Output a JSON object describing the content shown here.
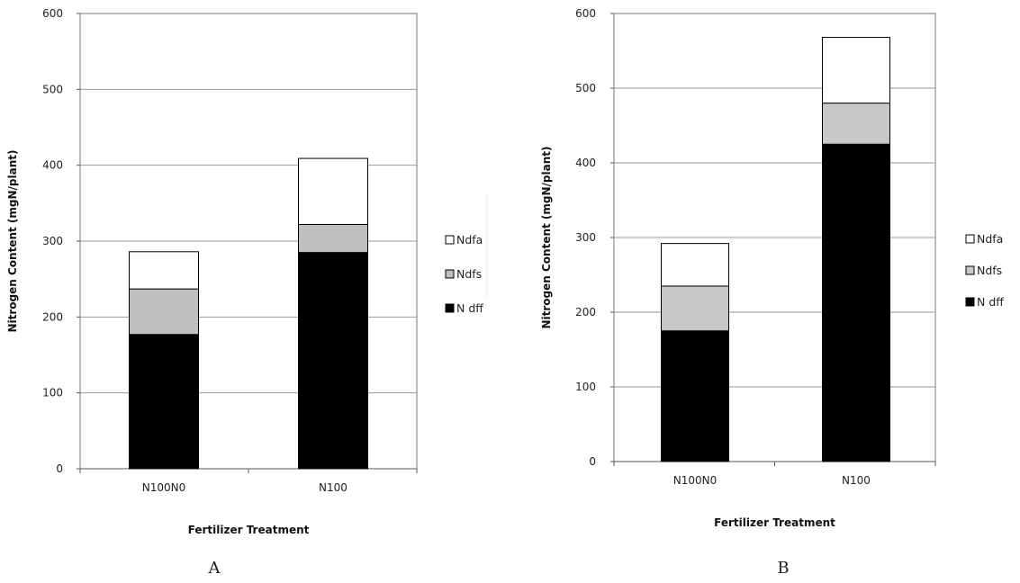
{
  "chart_data": [
    {
      "type": "bar",
      "stacked": true,
      "panel_label": "A",
      "categories": [
        "N100N0",
        "N100"
      ],
      "series": [
        {
          "name": "N dff",
          "color": "#000000",
          "values": [
            177,
            285
          ]
        },
        {
          "name": "Ndfs",
          "color": "#bfbfbf",
          "values": [
            60,
            37
          ]
        },
        {
          "name": "Ndfa",
          "color": "#ffffff",
          "values": [
            49,
            87
          ]
        }
      ],
      "xlabel": "Fertilizer Treatment",
      "ylabel": "Nitrogen Content (mgN/plant)",
      "ylim": [
        0,
        600
      ],
      "yticks": [
        0,
        100,
        200,
        300,
        400,
        500,
        600
      ],
      "grid": true,
      "legend_position": "right"
    },
    {
      "type": "bar",
      "stacked": true,
      "panel_label": "B",
      "categories": [
        "N100N0",
        "N100"
      ],
      "series": [
        {
          "name": "N dff",
          "color": "#000000",
          "values": [
            175,
            425
          ]
        },
        {
          "name": "Ndfs",
          "color": "#c8c8c8",
          "values": [
            60,
            55
          ]
        },
        {
          "name": "Ndfa",
          "color": "#ffffff",
          "values": [
            57,
            88
          ]
        }
      ],
      "xlabel": "Fertilizer Treatment",
      "ylabel": "Nitrogen Content (mgN/plant)",
      "ylim": [
        0,
        600
      ],
      "yticks": [
        0,
        100,
        200,
        300,
        400,
        500,
        600
      ],
      "grid": true,
      "legend_position": "right"
    }
  ]
}
